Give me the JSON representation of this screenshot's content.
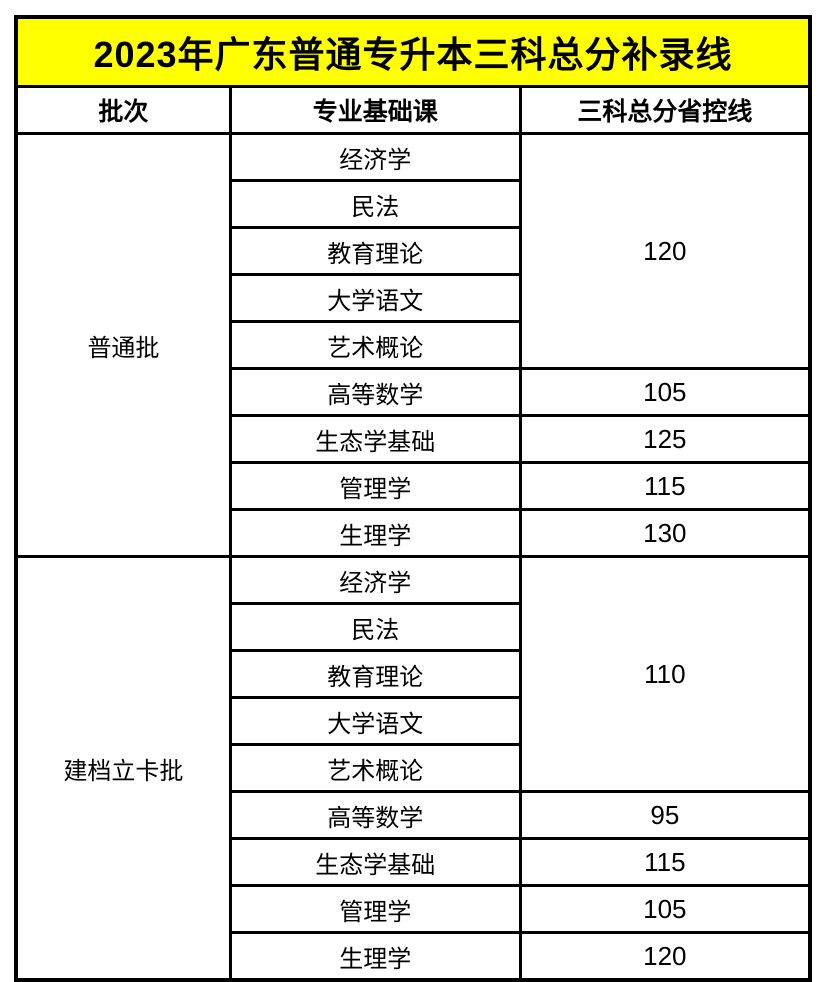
{
  "title": "2023年广东普通专升本三科总分补录线",
  "columns": [
    "批次",
    "专业基础课",
    "三科总分省控线"
  ],
  "batches": [
    {
      "name": "普通批",
      "groups": [
        {
          "courses": [
            "经济学",
            "民法",
            "教育理论",
            "大学语文",
            "艺术概论"
          ],
          "score": "120"
        },
        {
          "courses": [
            "高等数学"
          ],
          "score": "105"
        },
        {
          "courses": [
            "生态学基础"
          ],
          "score": "125"
        },
        {
          "courses": [
            "管理学"
          ],
          "score": "115"
        },
        {
          "courses": [
            "生理学"
          ],
          "score": "130"
        }
      ]
    },
    {
      "name": "建档立卡批",
      "groups": [
        {
          "courses": [
            "经济学",
            "民法",
            "教育理论",
            "大学语文",
            "艺术概论"
          ],
          "score": "110"
        },
        {
          "courses": [
            "高等数学"
          ],
          "score": "95"
        },
        {
          "courses": [
            "生态学基础"
          ],
          "score": "115"
        },
        {
          "courses": [
            "管理学"
          ],
          "score": "105"
        },
        {
          "courses": [
            "生理学"
          ],
          "score": "120"
        }
      ]
    }
  ],
  "colors": {
    "title_bg": "#FFFF00",
    "border": "#000000",
    "text": "#000000",
    "cell_bg": "#FFFFFF"
  }
}
